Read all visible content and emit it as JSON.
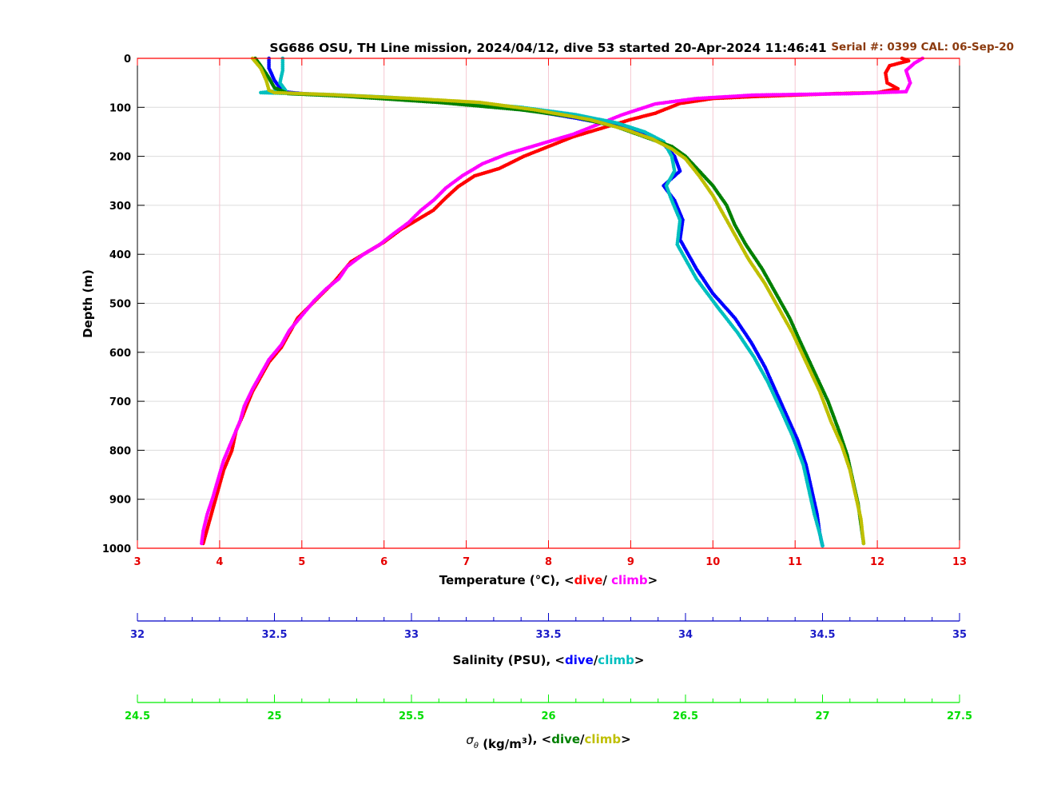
{
  "chart_data": {
    "type": "scatter",
    "title": "SG686 OSU, TH Line mission, 2024/04/12, dive 53 started 20-Apr-2024 11:46:41",
    "serial_label": "Serial #: 0399  CAL: 06-Sep-20",
    "ylabel": "Depth (m)",
    "ylim": [
      0,
      1000
    ],
    "y_reversed": true,
    "y_ticks": [
      "0",
      "100",
      "200",
      "300",
      "400",
      "500",
      "600",
      "700",
      "800",
      "900",
      "1000"
    ],
    "grid": true,
    "axes": [
      {
        "id": "temperature",
        "label_parts": [
          {
            "text": "Temperature (°C), <",
            "color": "#000000"
          },
          {
            "text": "dive",
            "color": "#ff0000"
          },
          {
            "text": "/ ",
            "color": "#000000"
          },
          {
            "text": "climb",
            "color": "#ff00ff"
          },
          {
            "text": ">",
            "color": "#000000"
          }
        ],
        "color": "#ff0000",
        "range": [
          3,
          13
        ],
        "ticks": [
          "3",
          "4",
          "5",
          "6",
          "7",
          "8",
          "9",
          "10",
          "11",
          "12",
          "13"
        ]
      },
      {
        "id": "salinity",
        "label_parts": [
          {
            "text": "Salinity (PSU), <",
            "color": "#000000"
          },
          {
            "text": "dive",
            "color": "#0000ff"
          },
          {
            "text": "/",
            "color": "#000000"
          },
          {
            "text": "climb",
            "color": "#00bfbf"
          },
          {
            "text": ">",
            "color": "#000000"
          }
        ],
        "color": "#0000c8",
        "range": [
          32,
          35
        ],
        "ticks": [
          "32",
          "32.5",
          "33",
          "33.5",
          "34",
          "34.5",
          "35"
        ]
      },
      {
        "id": "density",
        "label_symbol": "σ",
        "label_sub": "θ",
        "label_parts": [
          {
            "text": " (kg/m",
            "color": "#000000"
          },
          {
            "text": "3",
            "color": "#000000",
            "sup": true
          },
          {
            "text": "), <",
            "color": "#000000"
          },
          {
            "text": "dive",
            "color": "#008000"
          },
          {
            "text": "/",
            "color": "#000000"
          },
          {
            "text": "climb",
            "color": "#bfbf00"
          },
          {
            "text": ">",
            "color": "#000000"
          }
        ],
        "color": "#00ee00",
        "range": [
          24.5,
          27.5
        ],
        "ticks": [
          "24.5",
          "25",
          "25.5",
          "26",
          "26.5",
          "27",
          "27.5"
        ]
      }
    ],
    "series": [
      {
        "name": "dive",
        "axis": "temperature",
        "color": "#ff0000",
        "points": [
          [
            12.3,
            0
          ],
          [
            12.38,
            5
          ],
          [
            12.15,
            15
          ],
          [
            12.1,
            30
          ],
          [
            12.12,
            50
          ],
          [
            12.25,
            62
          ],
          [
            12.0,
            70
          ],
          [
            11.5,
            72
          ],
          [
            10.5,
            78
          ],
          [
            10.0,
            82
          ],
          [
            9.6,
            92
          ],
          [
            9.3,
            112
          ],
          [
            9.0,
            125
          ],
          [
            8.7,
            140
          ],
          [
            8.3,
            160
          ],
          [
            8.0,
            180
          ],
          [
            7.7,
            200
          ],
          [
            7.4,
            225
          ],
          [
            7.1,
            240
          ],
          [
            6.9,
            262
          ],
          [
            6.75,
            285
          ],
          [
            6.6,
            310
          ],
          [
            6.4,
            330
          ],
          [
            6.2,
            350
          ],
          [
            6.0,
            375
          ],
          [
            5.8,
            395
          ],
          [
            5.6,
            415
          ],
          [
            5.5,
            435
          ],
          [
            5.4,
            455
          ],
          [
            5.25,
            480
          ],
          [
            5.1,
            505
          ],
          [
            4.95,
            530
          ],
          [
            4.85,
            560
          ],
          [
            4.75,
            590
          ],
          [
            4.6,
            620
          ],
          [
            4.5,
            650
          ],
          [
            4.4,
            680
          ],
          [
            4.35,
            700
          ],
          [
            4.28,
            730
          ],
          [
            4.2,
            760
          ],
          [
            4.15,
            800
          ],
          [
            4.05,
            840
          ],
          [
            4.0,
            870
          ],
          [
            3.95,
            900
          ],
          [
            3.9,
            930
          ],
          [
            3.85,
            960
          ],
          [
            3.8,
            990
          ]
        ]
      },
      {
        "name": "climb",
        "axis": "temperature",
        "color": "#ff00ff",
        "points": [
          [
            12.55,
            0
          ],
          [
            12.45,
            10
          ],
          [
            12.35,
            25
          ],
          [
            12.4,
            50
          ],
          [
            12.35,
            68
          ],
          [
            11.7,
            72
          ],
          [
            10.5,
            75
          ],
          [
            9.8,
            82
          ],
          [
            9.3,
            93
          ],
          [
            8.9,
            115
          ],
          [
            8.6,
            135
          ],
          [
            8.3,
            155
          ],
          [
            7.9,
            175
          ],
          [
            7.5,
            195
          ],
          [
            7.2,
            215
          ],
          [
            6.95,
            240
          ],
          [
            6.75,
            265
          ],
          [
            6.6,
            290
          ],
          [
            6.45,
            310
          ],
          [
            6.3,
            335
          ],
          [
            6.1,
            360
          ],
          [
            5.95,
            380
          ],
          [
            5.75,
            400
          ],
          [
            5.55,
            425
          ],
          [
            5.45,
            450
          ],
          [
            5.3,
            470
          ],
          [
            5.15,
            495
          ],
          [
            5.0,
            525
          ],
          [
            4.85,
            555
          ],
          [
            4.75,
            585
          ],
          [
            4.6,
            615
          ],
          [
            4.5,
            645
          ],
          [
            4.4,
            675
          ],
          [
            4.3,
            710
          ],
          [
            4.25,
            740
          ],
          [
            4.15,
            780
          ],
          [
            4.05,
            820
          ],
          [
            3.98,
            860
          ],
          [
            3.92,
            895
          ],
          [
            3.85,
            930
          ],
          [
            3.8,
            965
          ],
          [
            3.78,
            990
          ]
        ]
      },
      {
        "name": "dive",
        "axis": "salinity",
        "color": "#0000ff",
        "points": [
          [
            32.48,
            0
          ],
          [
            32.48,
            20
          ],
          [
            32.5,
            45
          ],
          [
            32.52,
            60
          ],
          [
            32.53,
            68
          ],
          [
            32.6,
            72
          ],
          [
            32.75,
            77
          ],
          [
            32.95,
            82
          ],
          [
            33.25,
            95
          ],
          [
            33.45,
            108
          ],
          [
            33.6,
            122
          ],
          [
            33.75,
            138
          ],
          [
            33.85,
            155
          ],
          [
            33.92,
            175
          ],
          [
            33.96,
            200
          ],
          [
            33.98,
            230
          ],
          [
            33.92,
            260
          ],
          [
            33.96,
            290
          ],
          [
            33.99,
            330
          ],
          [
            33.98,
            370
          ],
          [
            34.04,
            430
          ],
          [
            34.1,
            480
          ],
          [
            34.18,
            530
          ],
          [
            34.24,
            580
          ],
          [
            34.29,
            630
          ],
          [
            34.33,
            680
          ],
          [
            34.37,
            730
          ],
          [
            34.41,
            780
          ],
          [
            34.44,
            830
          ],
          [
            34.46,
            880
          ],
          [
            34.48,
            930
          ],
          [
            34.49,
            970
          ],
          [
            34.5,
            995
          ]
        ]
      },
      {
        "name": "climb",
        "axis": "salinity",
        "color": "#00bfbf",
        "points": [
          [
            32.53,
            0
          ],
          [
            32.53,
            25
          ],
          [
            32.52,
            50
          ],
          [
            32.54,
            65
          ],
          [
            32.45,
            70
          ],
          [
            32.7,
            74
          ],
          [
            32.9,
            79
          ],
          [
            33.2,
            90
          ],
          [
            33.4,
            100
          ],
          [
            33.6,
            115
          ],
          [
            33.75,
            132
          ],
          [
            33.85,
            150
          ],
          [
            33.92,
            170
          ],
          [
            33.95,
            200
          ],
          [
            33.96,
            230
          ],
          [
            33.93,
            260
          ],
          [
            33.95,
            290
          ],
          [
            33.98,
            330
          ],
          [
            33.97,
            380
          ],
          [
            34.04,
            450
          ],
          [
            34.12,
            510
          ],
          [
            34.19,
            560
          ],
          [
            34.25,
            610
          ],
          [
            34.3,
            660
          ],
          [
            34.35,
            720
          ],
          [
            34.39,
            770
          ],
          [
            34.43,
            830
          ],
          [
            34.45,
            880
          ],
          [
            34.47,
            930
          ],
          [
            34.49,
            970
          ],
          [
            34.5,
            995
          ]
        ]
      },
      {
        "name": "dive",
        "axis": "density",
        "color": "#008000",
        "points": [
          [
            24.93,
            0
          ],
          [
            24.95,
            15
          ],
          [
            24.98,
            40
          ],
          [
            25.0,
            60
          ],
          [
            25.05,
            72
          ],
          [
            25.25,
            77
          ],
          [
            25.6,
            90
          ],
          [
            25.9,
            105
          ],
          [
            26.1,
            120
          ],
          [
            26.25,
            140
          ],
          [
            26.35,
            160
          ],
          [
            26.45,
            180
          ],
          [
            26.5,
            200
          ],
          [
            26.55,
            230
          ],
          [
            26.6,
            260
          ],
          [
            26.65,
            300
          ],
          [
            26.68,
            340
          ],
          [
            26.72,
            380
          ],
          [
            26.78,
            430
          ],
          [
            26.83,
            480
          ],
          [
            26.88,
            530
          ],
          [
            26.92,
            580
          ],
          [
            26.97,
            640
          ],
          [
            27.02,
            700
          ],
          [
            27.06,
            760
          ],
          [
            27.09,
            810
          ],
          [
            27.11,
            860
          ],
          [
            27.13,
            910
          ],
          [
            27.14,
            950
          ],
          [
            27.15,
            990
          ]
        ]
      },
      {
        "name": "climb",
        "axis": "density",
        "color": "#bfbf00",
        "points": [
          [
            24.92,
            0
          ],
          [
            24.95,
            20
          ],
          [
            24.97,
            45
          ],
          [
            24.98,
            65
          ],
          [
            25.0,
            70
          ],
          [
            25.2,
            74
          ],
          [
            25.5,
            82
          ],
          [
            25.75,
            90
          ],
          [
            25.95,
            105
          ],
          [
            26.15,
            125
          ],
          [
            26.28,
            145
          ],
          [
            26.38,
            165
          ],
          [
            26.45,
            185
          ],
          [
            26.5,
            205
          ],
          [
            26.55,
            240
          ],
          [
            26.6,
            280
          ],
          [
            26.64,
            320
          ],
          [
            26.68,
            360
          ],
          [
            26.73,
            410
          ],
          [
            26.79,
            460
          ],
          [
            26.84,
            510
          ],
          [
            26.89,
            560
          ],
          [
            26.94,
            620
          ],
          [
            26.99,
            680
          ],
          [
            27.03,
            740
          ],
          [
            27.07,
            790
          ],
          [
            27.1,
            840
          ],
          [
            27.12,
            890
          ],
          [
            27.14,
            940
          ],
          [
            27.15,
            990
          ]
        ]
      }
    ]
  }
}
